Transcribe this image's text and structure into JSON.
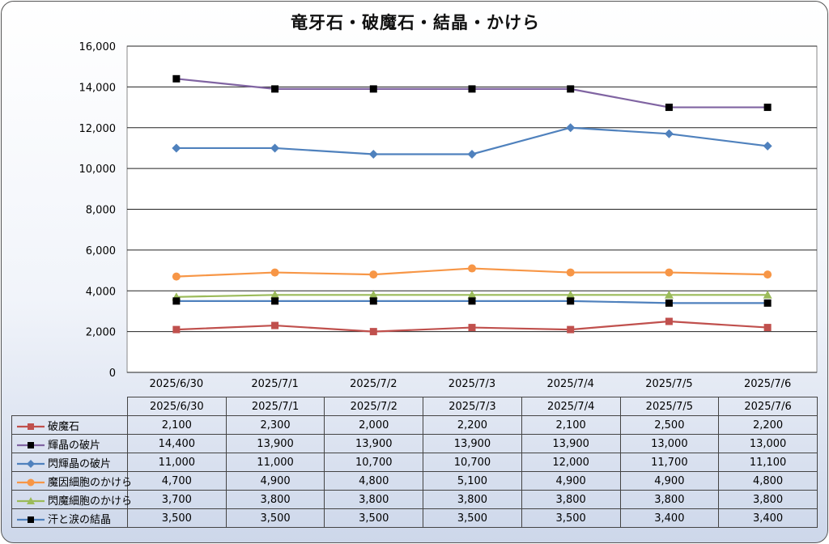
{
  "chart_data": {
    "type": "line",
    "title": "竜牙石・破魔石・結晶・かけら",
    "categories": [
      "2025/6/30",
      "2025/7/1",
      "2025/7/2",
      "2025/7/3",
      "2025/7/4",
      "2025/7/5",
      "2025/7/6"
    ],
    "ylim": [
      0,
      16000
    ],
    "yticks": [
      0,
      2000,
      4000,
      6000,
      8000,
      10000,
      12000,
      14000,
      16000
    ],
    "ytick_labels": [
      "0",
      "2,000",
      "4,000",
      "6,000",
      "8,000",
      "10,000",
      "12,000",
      "14,000",
      "16,000"
    ],
    "grid": true,
    "legend_placement": "data-table",
    "series": [
      {
        "name": "破魔石",
        "color": "#c0504d",
        "marker": "square",
        "values": [
          2100,
          2300,
          2000,
          2200,
          2100,
          2500,
          2200
        ],
        "labels": [
          "2,100",
          "2,300",
          "2,000",
          "2,200",
          "2,100",
          "2,500",
          "2,200"
        ]
      },
      {
        "name": "輝晶の破片",
        "color": "#8064a2",
        "marker": "square-black",
        "values": [
          14400,
          13900,
          13900,
          13900,
          13900,
          13000,
          13000
        ],
        "labels": [
          "14,400",
          "13,900",
          "13,900",
          "13,900",
          "13,900",
          "13,000",
          "13,000"
        ]
      },
      {
        "name": "閃輝晶の破片",
        "color": "#4f81bd",
        "marker": "diamond",
        "values": [
          11000,
          11000,
          10700,
          10700,
          12000,
          11700,
          11100
        ],
        "labels": [
          "11,000",
          "11,000",
          "10,700",
          "10,700",
          "12,000",
          "11,700",
          "11,100"
        ]
      },
      {
        "name": "魔因細胞のかけら",
        "color": "#f79646",
        "marker": "circle",
        "values": [
          4700,
          4900,
          4800,
          5100,
          4900,
          4900,
          4800
        ],
        "labels": [
          "4,700",
          "4,900",
          "4,800",
          "5,100",
          "4,900",
          "4,900",
          "4,800"
        ]
      },
      {
        "name": "閃魔細胞のかけら",
        "color": "#9bbb59",
        "marker": "triangle",
        "values": [
          3700,
          3800,
          3800,
          3800,
          3800,
          3800,
          3800
        ],
        "labels": [
          "3,700",
          "3,800",
          "3,800",
          "3,800",
          "3,800",
          "3,800",
          "3,800"
        ]
      },
      {
        "name": "汗と涙の結晶",
        "color": "#4f81bd",
        "marker": "square-black",
        "values": [
          3500,
          3500,
          3500,
          3500,
          3500,
          3400,
          3400
        ],
        "labels": [
          "3,500",
          "3,500",
          "3,500",
          "3,500",
          "3,500",
          "3,400",
          "3,400"
        ]
      }
    ]
  }
}
